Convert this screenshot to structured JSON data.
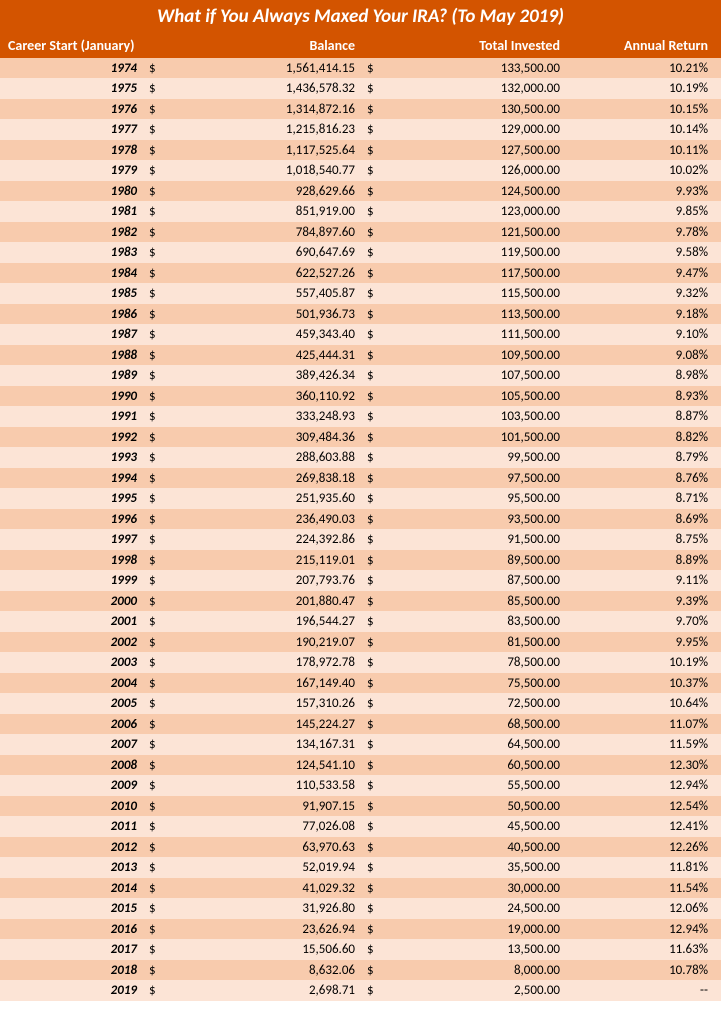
{
  "title": "What if You Always Maxed Your IRA? (To May 2019)",
  "columns": [
    "Career Start (January)",
    "Balance",
    "Total Invested",
    "Annual Return"
  ],
  "colors": {
    "header_bg": "#d35400",
    "header_text": "#ffffff",
    "row_even": "#f8cbad",
    "row_odd": "#fce4d6"
  },
  "rows": [
    {
      "year": "1974",
      "balance": "1,561,414.15",
      "invested": "133,500.00",
      "return": "10.21%"
    },
    {
      "year": "1975",
      "balance": "1,436,578.32",
      "invested": "132,000.00",
      "return": "10.19%"
    },
    {
      "year": "1976",
      "balance": "1,314,872.16",
      "invested": "130,500.00",
      "return": "10.15%"
    },
    {
      "year": "1977",
      "balance": "1,215,816.23",
      "invested": "129,000.00",
      "return": "10.14%"
    },
    {
      "year": "1978",
      "balance": "1,117,525.64",
      "invested": "127,500.00",
      "return": "10.11%"
    },
    {
      "year": "1979",
      "balance": "1,018,540.77",
      "invested": "126,000.00",
      "return": "10.02%"
    },
    {
      "year": "1980",
      "balance": "928,629.66",
      "invested": "124,500.00",
      "return": "9.93%"
    },
    {
      "year": "1981",
      "balance": "851,919.00",
      "invested": "123,000.00",
      "return": "9.85%"
    },
    {
      "year": "1982",
      "balance": "784,897.60",
      "invested": "121,500.00",
      "return": "9.78%"
    },
    {
      "year": "1983",
      "balance": "690,647.69",
      "invested": "119,500.00",
      "return": "9.58%"
    },
    {
      "year": "1984",
      "balance": "622,527.26",
      "invested": "117,500.00",
      "return": "9.47%"
    },
    {
      "year": "1985",
      "balance": "557,405.87",
      "invested": "115,500.00",
      "return": "9.32%"
    },
    {
      "year": "1986",
      "balance": "501,936.73",
      "invested": "113,500.00",
      "return": "9.18%"
    },
    {
      "year": "1987",
      "balance": "459,343.40",
      "invested": "111,500.00",
      "return": "9.10%"
    },
    {
      "year": "1988",
      "balance": "425,444.31",
      "invested": "109,500.00",
      "return": "9.08%"
    },
    {
      "year": "1989",
      "balance": "389,426.34",
      "invested": "107,500.00",
      "return": "8.98%"
    },
    {
      "year": "1990",
      "balance": "360,110.92",
      "invested": "105,500.00",
      "return": "8.93%"
    },
    {
      "year": "1991",
      "balance": "333,248.93",
      "invested": "103,500.00",
      "return": "8.87%"
    },
    {
      "year": "1992",
      "balance": "309,484.36",
      "invested": "101,500.00",
      "return": "8.82%"
    },
    {
      "year": "1993",
      "balance": "288,603.88",
      "invested": "99,500.00",
      "return": "8.79%"
    },
    {
      "year": "1994",
      "balance": "269,838.18",
      "invested": "97,500.00",
      "return": "8.76%"
    },
    {
      "year": "1995",
      "balance": "251,935.60",
      "invested": "95,500.00",
      "return": "8.71%"
    },
    {
      "year": "1996",
      "balance": "236,490.03",
      "invested": "93,500.00",
      "return": "8.69%"
    },
    {
      "year": "1997",
      "balance": "224,392.86",
      "invested": "91,500.00",
      "return": "8.75%"
    },
    {
      "year": "1998",
      "balance": "215,119.01",
      "invested": "89,500.00",
      "return": "8.89%"
    },
    {
      "year": "1999",
      "balance": "207,793.76",
      "invested": "87,500.00",
      "return": "9.11%"
    },
    {
      "year": "2000",
      "balance": "201,880.47",
      "invested": "85,500.00",
      "return": "9.39%"
    },
    {
      "year": "2001",
      "balance": "196,544.27",
      "invested": "83,500.00",
      "return": "9.70%"
    },
    {
      "year": "2002",
      "balance": "190,219.07",
      "invested": "81,500.00",
      "return": "9.95%"
    },
    {
      "year": "2003",
      "balance": "178,972.78",
      "invested": "78,500.00",
      "return": "10.19%"
    },
    {
      "year": "2004",
      "balance": "167,149.40",
      "invested": "75,500.00",
      "return": "10.37%"
    },
    {
      "year": "2005",
      "balance": "157,310.26",
      "invested": "72,500.00",
      "return": "10.64%"
    },
    {
      "year": "2006",
      "balance": "145,224.27",
      "invested": "68,500.00",
      "return": "11.07%"
    },
    {
      "year": "2007",
      "balance": "134,167.31",
      "invested": "64,500.00",
      "return": "11.59%"
    },
    {
      "year": "2008",
      "balance": "124,541.10",
      "invested": "60,500.00",
      "return": "12.30%"
    },
    {
      "year": "2009",
      "balance": "110,533.58",
      "invested": "55,500.00",
      "return": "12.94%"
    },
    {
      "year": "2010",
      "balance": "91,907.15",
      "invested": "50,500.00",
      "return": "12.54%"
    },
    {
      "year": "2011",
      "balance": "77,026.08",
      "invested": "45,500.00",
      "return": "12.41%"
    },
    {
      "year": "2012",
      "balance": "63,970.63",
      "invested": "40,500.00",
      "return": "12.26%"
    },
    {
      "year": "2013",
      "balance": "52,019.94",
      "invested": "35,500.00",
      "return": "11.81%"
    },
    {
      "year": "2014",
      "balance": "41,029.32",
      "invested": "30,000.00",
      "return": "11.54%"
    },
    {
      "year": "2015",
      "balance": "31,926.80",
      "invested": "24,500.00",
      "return": "12.06%"
    },
    {
      "year": "2016",
      "balance": "23,626.94",
      "invested": "19,000.00",
      "return": "12.94%"
    },
    {
      "year": "2017",
      "balance": "15,506.60",
      "invested": "13,500.00",
      "return": "11.63%"
    },
    {
      "year": "2018",
      "balance": "8,632.06",
      "invested": "8,000.00",
      "return": "10.78%"
    },
    {
      "year": "2019",
      "balance": "2,698.71",
      "invested": "2,500.00",
      "return": "--"
    }
  ]
}
